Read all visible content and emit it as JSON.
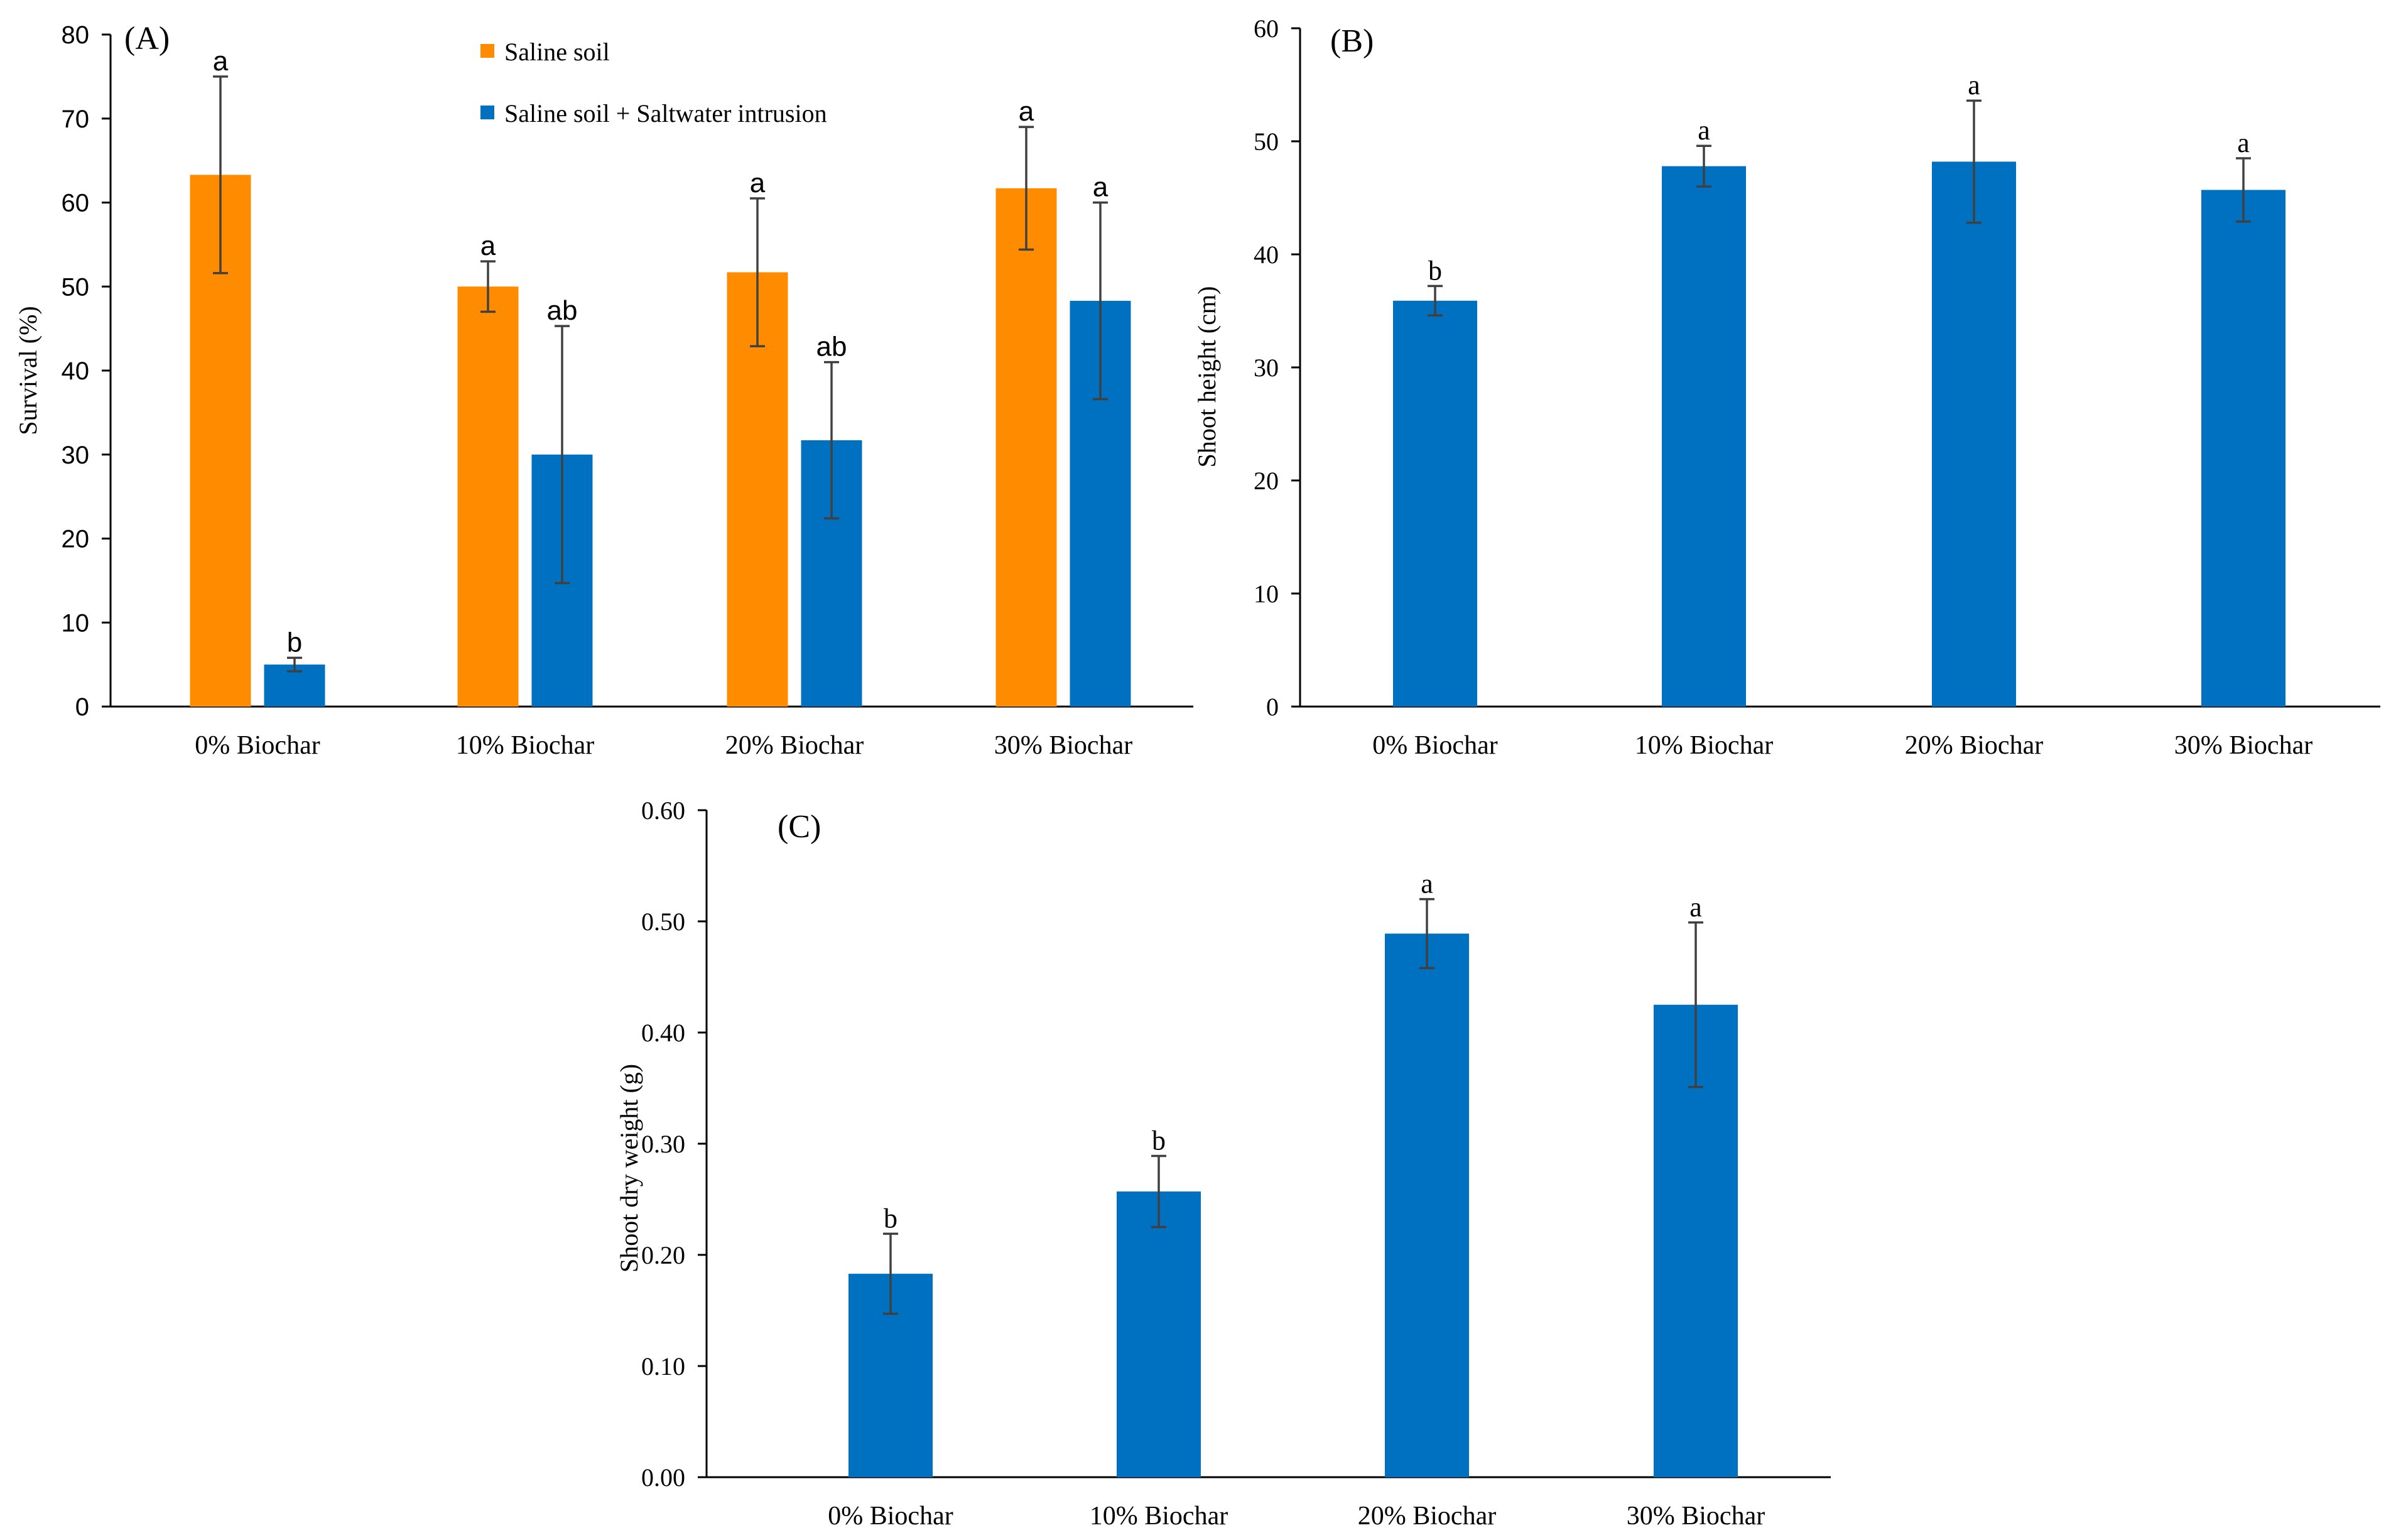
{
  "colors": {
    "saline_soil": "#FF8C00",
    "saline_plus_intrusion": "#0070C0",
    "axis": "#000000",
    "error_bar": "#404040"
  },
  "chart_data": [
    {
      "id": "A",
      "panel_label": "(A)",
      "type": "bar",
      "title": "",
      "xlabel": "",
      "ylabel": "Survival (%)",
      "ylim": [
        0,
        80
      ],
      "yticks": [
        0,
        10,
        20,
        30,
        40,
        50,
        60,
        70,
        80
      ],
      "ytick_labels": [
        "0",
        "10",
        "20",
        "30",
        "40",
        "50",
        "60",
        "70",
        "80"
      ],
      "categories": [
        "0% Biochar",
        "10% Biochar",
        "20% Biochar",
        "30% Biochar"
      ],
      "legend": {
        "position": "top-center",
        "entries": [
          "Saline soil",
          "Saline soil + Saltwater intrusion"
        ]
      },
      "series": [
        {
          "name": "Saline soil",
          "color": "#FF8C00",
          "values": [
            63.3,
            50.0,
            51.7,
            61.7
          ],
          "errors": [
            11.7,
            3.0,
            8.8,
            7.3
          ],
          "labels": [
            "a",
            "a",
            "a",
            "a"
          ]
        },
        {
          "name": "Saline soil + Saltwater intrusion",
          "color": "#0070C0",
          "values": [
            5.0,
            30.0,
            31.7,
            48.3
          ],
          "errors": [
            0.8,
            15.3,
            9.3,
            11.7
          ],
          "labels": [
            "b",
            "ab",
            "ab",
            "a"
          ]
        }
      ]
    },
    {
      "id": "B",
      "panel_label": "(B)",
      "type": "bar",
      "title": "",
      "xlabel": "",
      "ylabel": "Shoot height (cm)",
      "ylim": [
        0,
        60
      ],
      "yticks": [
        0,
        10,
        20,
        30,
        40,
        50,
        60
      ],
      "ytick_labels": [
        "0",
        "10",
        "20",
        "30",
        "40",
        "50",
        "60"
      ],
      "categories": [
        "0% Biochar",
        "10% Biochar",
        "20% Biochar",
        "30% Biochar"
      ],
      "series": [
        {
          "name": "Shoot height",
          "color": "#0070C0",
          "values": [
            35.9,
            47.8,
            48.2,
            45.7
          ],
          "errors": [
            1.3,
            1.8,
            5.4,
            2.8
          ],
          "labels": [
            "b",
            "a",
            "a",
            "a"
          ]
        }
      ]
    },
    {
      "id": "C",
      "panel_label": "(C)",
      "type": "bar",
      "title": "",
      "xlabel": "",
      "ylabel": "Shoot dry weight (g)",
      "ylim": [
        0,
        0.6
      ],
      "yticks": [
        0,
        0.1,
        0.2,
        0.3,
        0.4,
        0.5,
        0.6
      ],
      "ytick_labels": [
        "0.00",
        "0.10",
        "0.20",
        "0.30",
        "0.40",
        "0.50",
        "0.60"
      ],
      "categories": [
        "0% Biochar",
        "10% Biochar",
        "20% Biochar",
        "30% Biochar"
      ],
      "series": [
        {
          "name": "Shoot dry weight",
          "color": "#0070C0",
          "values": [
            0.183,
            0.257,
            0.489,
            0.425
          ],
          "errors": [
            0.036,
            0.032,
            0.031,
            0.074
          ],
          "labels": [
            "b",
            "b",
            "a",
            "a"
          ]
        }
      ]
    }
  ]
}
